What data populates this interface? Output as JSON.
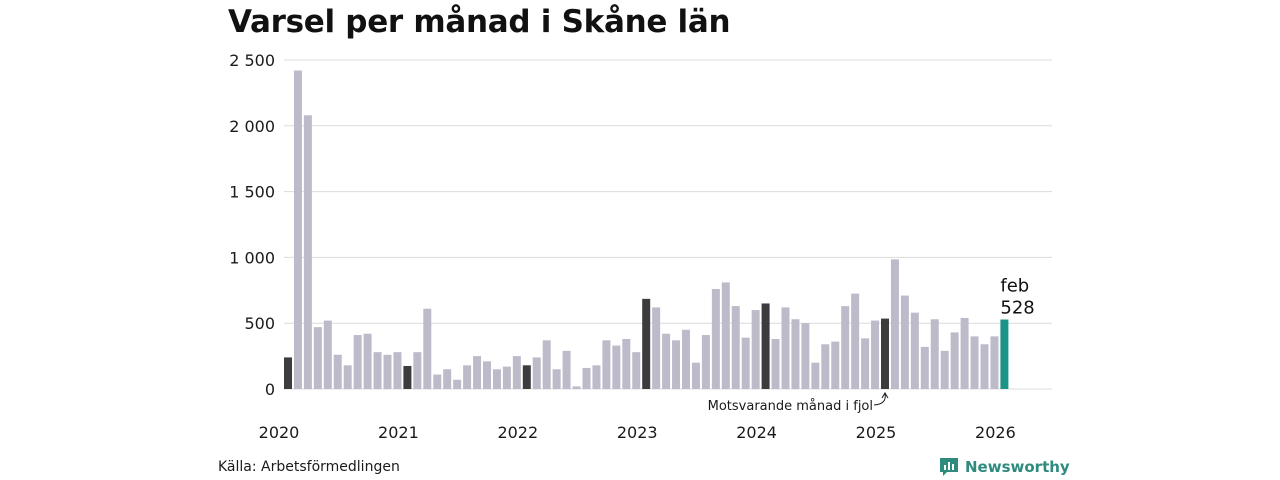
{
  "colors": {
    "bar": "#bdbbc9",
    "same_month": "#3c3c3e",
    "latest": "#1a9486",
    "grid": "#dcdcdc",
    "text": "#1a1a1a",
    "brand": "#2e8b7e"
  },
  "chart_data": {
    "type": "bar",
    "title": "Varsel per månad i Skåne län",
    "xlabel": "",
    "ylabel": "",
    "ylim": [
      0,
      2500
    ],
    "y_ticks": [
      {
        "value": 0,
        "label": "0"
      },
      {
        "value": 500,
        "label": "500"
      },
      {
        "value": 1000,
        "label": "1 000"
      },
      {
        "value": 1500,
        "label": "1 500"
      },
      {
        "value": 2000,
        "label": "2 000"
      },
      {
        "value": 2500,
        "label": "2 500"
      }
    ],
    "x_ticks": [
      {
        "index": 0,
        "label": "2020"
      },
      {
        "index": 12,
        "label": "2021"
      },
      {
        "index": 24,
        "label": "2022"
      },
      {
        "index": 36,
        "label": "2023"
      },
      {
        "index": 48,
        "label": "2024"
      },
      {
        "index": 60,
        "label": "2025"
      },
      {
        "index": 72,
        "label": "2026"
      }
    ],
    "start_month": "2020-02",
    "values": [
      240,
      2420,
      2080,
      470,
      520,
      260,
      180,
      410,
      420,
      280,
      260,
      280,
      175,
      280,
      610,
      110,
      150,
      70,
      180,
      250,
      210,
      150,
      170,
      250,
      180,
      240,
      370,
      150,
      290,
      20,
      160,
      180,
      370,
      330,
      380,
      280,
      685,
      620,
      420,
      370,
      450,
      200,
      410,
      760,
      810,
      630,
      390,
      600,
      650,
      380,
      620,
      530,
      500,
      200,
      340,
      360,
      630,
      725,
      385,
      520,
      535,
      985,
      710,
      580,
      320,
      530,
      290,
      430,
      540,
      400,
      340,
      400,
      528
    ],
    "highlight_same_month": [
      0,
      12,
      24,
      36,
      48,
      60
    ],
    "highlight_latest": 72,
    "latest_label": {
      "month": "feb",
      "value": "528"
    },
    "annotation": {
      "text": "Motsvarande månad i fjol",
      "target_index": 60
    },
    "grid": true,
    "source": "Källa: Arbetsförmedlingen"
  },
  "branding": {
    "name": "Newsworthy",
    "icon": "newsworthy-logo-icon"
  }
}
